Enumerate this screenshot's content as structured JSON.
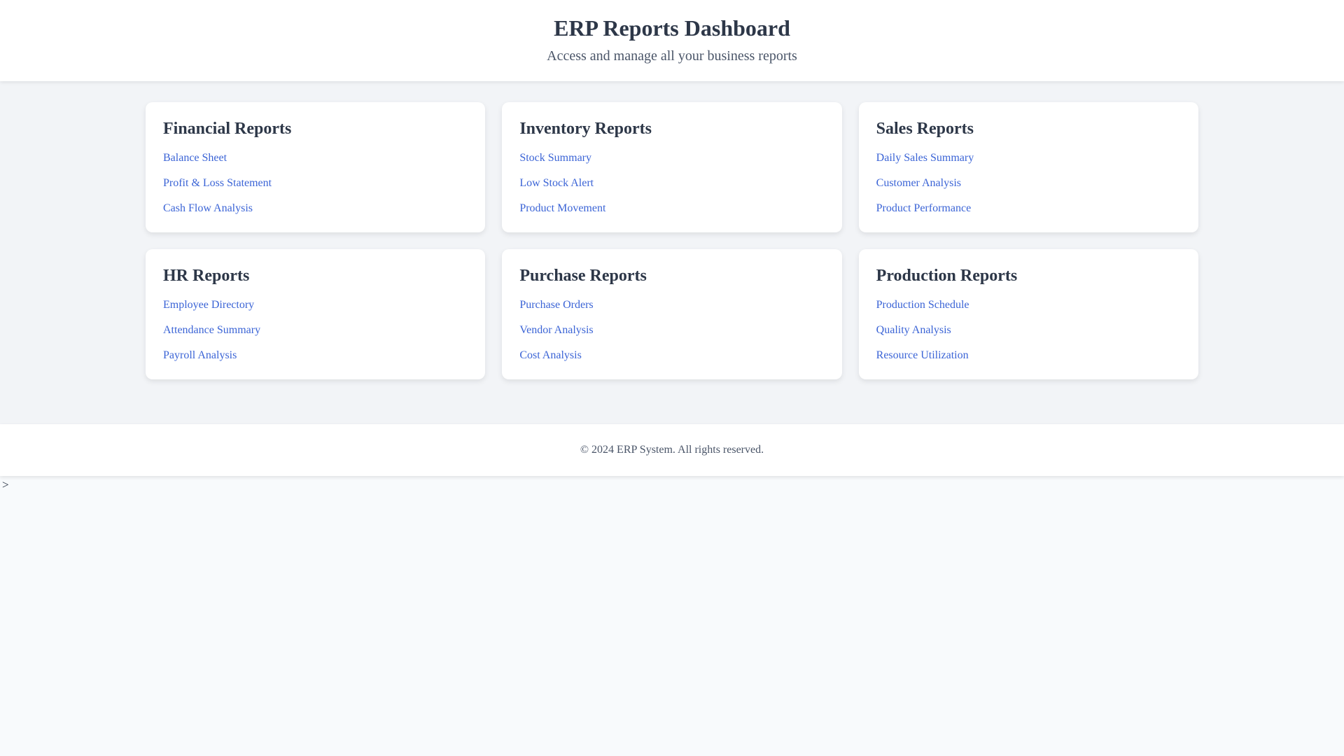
{
  "header": {
    "title": "ERP Reports Dashboard",
    "subtitle": "Access and manage all your business reports"
  },
  "cards": [
    {
      "title": "Financial Reports",
      "links": [
        "Balance Sheet",
        "Profit & Loss Statement",
        "Cash Flow Analysis"
      ]
    },
    {
      "title": "Inventory Reports",
      "links": [
        "Stock Summary",
        "Low Stock Alert",
        "Product Movement"
      ]
    },
    {
      "title": "Sales Reports",
      "links": [
        "Daily Sales Summary",
        "Customer Analysis",
        "Product Performance"
      ]
    },
    {
      "title": "HR Reports",
      "links": [
        "Employee Directory",
        "Attendance Summary",
        "Payroll Analysis"
      ]
    },
    {
      "title": "Purchase Reports",
      "links": [
        "Purchase Orders",
        "Vendor Analysis",
        "Cost Analysis"
      ]
    },
    {
      "title": "Production Reports",
      "links": [
        "Production Schedule",
        "Quality Analysis",
        "Resource Utilization"
      ]
    }
  ],
  "footer": {
    "copyright": "© 2024 ERP System. All rights reserved."
  },
  "stray_text": ">",
  "colors": {
    "heading": "#2d3748",
    "subtitle": "#4a5568",
    "link": "#3b64d6",
    "main_background": "#f2f4f7",
    "body_background": "#f8fafc",
    "surface": "#ffffff"
  }
}
